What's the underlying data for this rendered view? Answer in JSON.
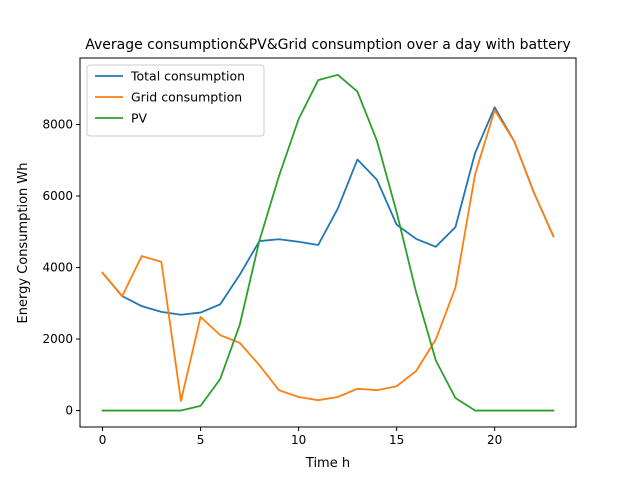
{
  "chart_data": {
    "type": "line",
    "title": "Average consumption&PV&Grid consumption over a day with battery",
    "xlabel": "Time h",
    "ylabel": "Energy Consumption Wh",
    "xlim": [
      -1.15,
      24.15
    ],
    "ylim": [
      -460,
      9860
    ],
    "xticks": [
      0,
      5,
      10,
      15,
      20
    ],
    "yticks": [
      0,
      2000,
      4000,
      6000,
      8000
    ],
    "grid": false,
    "legend_position": "top-left",
    "x": [
      0,
      1,
      2,
      3,
      4,
      5,
      6,
      7,
      8,
      9,
      10,
      11,
      12,
      13,
      14,
      15,
      16,
      17,
      18,
      19,
      20,
      21,
      22,
      23
    ],
    "series": [
      {
        "name": "Total consumption",
        "color": "#1f77b4",
        "values": [
          3850,
          3200,
          2920,
          2760,
          2680,
          2740,
          2970,
          3800,
          4740,
          4790,
          4720,
          4630,
          5650,
          7020,
          6450,
          5200,
          4800,
          4580,
          5130,
          7200,
          8480,
          7530,
          6100,
          4870
        ]
      },
      {
        "name": "Grid consumption",
        "color": "#ff7f0e",
        "values": [
          3850,
          3200,
          4320,
          4160,
          270,
          2620,
          2110,
          1890,
          1270,
          570,
          380,
          290,
          380,
          610,
          570,
          680,
          1110,
          1990,
          3440,
          6600,
          8400,
          7530,
          6100,
          4870
        ]
      },
      {
        "name": "PV",
        "color": "#2ca02c",
        "values": [
          0,
          0,
          0,
          0,
          0,
          130,
          880,
          2400,
          4750,
          6560,
          8150,
          9240,
          9390,
          8920,
          7540,
          5550,
          3300,
          1400,
          350,
          0,
          0,
          0,
          0,
          0
        ]
      }
    ]
  }
}
